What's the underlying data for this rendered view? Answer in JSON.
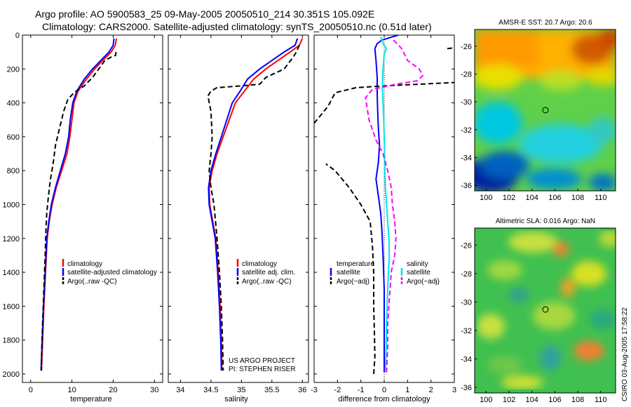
{
  "figure": {
    "title_line1": "Argo profile: AO 5900583_25 09-May-2005 20050510_214 30.351S 105.092E",
    "title_line2": "Climatology: CARS2000. Satellite-adjusted climatology: synTS_20050510.nc (0.51d later)",
    "credit": "CSIRO 03-Aug-2005 17:58:22",
    "project_line1": "US ARGO PROJECT",
    "project_line2": "PI: STEPHEN RISER"
  },
  "colors": {
    "climatology": "#ff0000",
    "satellite": "#0000ff",
    "argo": "#000000",
    "salinity_satellite": "#00e5ee",
    "salinity_argo": "#ff00ff"
  },
  "chart_data": [
    {
      "type": "line",
      "panel": "temperature",
      "xlabel": "temperature",
      "ylabel": "",
      "xlim": [
        -2,
        32
      ],
      "ylim": [
        2050,
        0
      ],
      "x_ticks": [
        "0",
        "10",
        "20",
        "30"
      ],
      "y_ticks": [
        "0",
        "200",
        "400",
        "600",
        "800",
        "1000",
        "1200",
        "1400",
        "1600",
        "1800",
        "2000"
      ],
      "legend": [
        "climatology",
        "satellite-adjusted climatology",
        "Argo(..raw -QC)"
      ],
      "series": [
        {
          "name": "climatology",
          "color": "#ff0000",
          "dash": "solid",
          "points": [
            [
              20.8,
              20
            ],
            [
              20.5,
              60
            ],
            [
              19.5,
              100
            ],
            [
              17.5,
              150
            ],
            [
              15.5,
              200
            ],
            [
              13.5,
              260
            ],
            [
              11.5,
              330
            ],
            [
              10.5,
              400
            ],
            [
              10.0,
              500
            ],
            [
              9.5,
              600
            ],
            [
              8.8,
              700
            ],
            [
              7.5,
              800
            ],
            [
              6.2,
              900
            ],
            [
              5.2,
              1000
            ],
            [
              4.5,
              1100
            ],
            [
              4.0,
              1200
            ],
            [
              3.6,
              1400
            ],
            [
              3.2,
              1600
            ],
            [
              2.9,
              1800
            ],
            [
              2.6,
              1980
            ]
          ]
        },
        {
          "name": "satellite-adjusted climatology",
          "color": "#0000ff",
          "dash": "solid",
          "points": [
            [
              20.2,
              20
            ],
            [
              20.0,
              60
            ],
            [
              19.0,
              100
            ],
            [
              17.0,
              150
            ],
            [
              15.0,
              200
            ],
            [
              13.0,
              260
            ],
            [
              11.2,
              330
            ],
            [
              10.2,
              400
            ],
            [
              9.6,
              500
            ],
            [
              9.2,
              600
            ],
            [
              8.4,
              700
            ],
            [
              7.2,
              800
            ],
            [
              6.0,
              900
            ],
            [
              5.0,
              1000
            ],
            [
              4.4,
              1100
            ],
            [
              3.9,
              1200
            ],
            [
              3.5,
              1400
            ],
            [
              3.1,
              1600
            ],
            [
              2.8,
              1800
            ],
            [
              2.5,
              1980
            ]
          ]
        },
        {
          "name": "Argo(..raw -QC)",
          "color": "#000000",
          "dash": "dashed",
          "points": [
            [
              20.7,
              100
            ],
            [
              20.6,
              120
            ],
            [
              19.5,
              130
            ],
            [
              18.0,
              150
            ],
            [
              16.5,
              200
            ],
            [
              15.0,
              250
            ],
            [
              13.0,
              300
            ],
            [
              10.5,
              340
            ],
            [
              9.0,
              380
            ],
            [
              8.0,
              450
            ],
            [
              7.0,
              550
            ],
            [
              6.0,
              650
            ],
            [
              5.5,
              750
            ],
            [
              4.8,
              850
            ],
            [
              4.3,
              950
            ],
            [
              3.9,
              1050
            ],
            [
              3.7,
              1150
            ],
            [
              3.5,
              1300
            ],
            [
              3.2,
              1500
            ],
            [
              2.9,
              1700
            ],
            [
              2.7,
              1850
            ],
            [
              2.6,
              1980
            ]
          ]
        }
      ]
    },
    {
      "type": "line",
      "panel": "salinity",
      "xlabel": "salinity",
      "ylabel": "",
      "xlim": [
        33.8,
        36.1
      ],
      "ylim": [
        2050,
        0
      ],
      "x_ticks": [
        "34",
        "34.5",
        "35",
        "35.5",
        "36"
      ],
      "legend": [
        "climatology",
        "satellite adj. clim.",
        "Argo(..raw -QC)"
      ],
      "series": [
        {
          "name": "climatology",
          "color": "#ff0000",
          "dash": "solid",
          "points": [
            [
              36.0,
              20
            ],
            [
              35.95,
              60
            ],
            [
              35.8,
              100
            ],
            [
              35.6,
              150
            ],
            [
              35.4,
              200
            ],
            [
              35.2,
              260
            ],
            [
              35.05,
              330
            ],
            [
              34.9,
              400
            ],
            [
              34.8,
              500
            ],
            [
              34.7,
              600
            ],
            [
              34.6,
              700
            ],
            [
              34.52,
              800
            ],
            [
              34.47,
              900
            ],
            [
              34.48,
              1000
            ],
            [
              34.53,
              1100
            ],
            [
              34.58,
              1200
            ],
            [
              34.62,
              1400
            ],
            [
              34.65,
              1600
            ],
            [
              34.67,
              1800
            ],
            [
              34.68,
              1980
            ]
          ]
        },
        {
          "name": "satellite adj. clim.",
          "color": "#0000ff",
          "dash": "solid",
          "points": [
            [
              35.92,
              20
            ],
            [
              35.88,
              60
            ],
            [
              35.7,
              100
            ],
            [
              35.5,
              150
            ],
            [
              35.3,
              200
            ],
            [
              35.1,
              260
            ],
            [
              34.98,
              330
            ],
            [
              34.85,
              400
            ],
            [
              34.76,
              500
            ],
            [
              34.67,
              600
            ],
            [
              34.58,
              700
            ],
            [
              34.5,
              800
            ],
            [
              34.46,
              900
            ],
            [
              34.47,
              1000
            ],
            [
              34.52,
              1100
            ],
            [
              34.57,
              1200
            ],
            [
              34.61,
              1400
            ],
            [
              34.64,
              1600
            ],
            [
              34.66,
              1800
            ],
            [
              34.67,
              1980
            ]
          ]
        },
        {
          "name": "Argo(..raw -QC)",
          "color": "#000000",
          "dash": "dashed",
          "points": [
            [
              35.95,
              60
            ],
            [
              35.9,
              100
            ],
            [
              35.85,
              130
            ],
            [
              35.7,
              200
            ],
            [
              35.4,
              250
            ],
            [
              35.3,
              290
            ],
            [
              35.0,
              300
            ],
            [
              34.6,
              310
            ],
            [
              34.5,
              330
            ],
            [
              34.45,
              360
            ],
            [
              34.5,
              450
            ],
            [
              34.52,
              600
            ],
            [
              34.5,
              700
            ],
            [
              34.47,
              800
            ],
            [
              34.5,
              900
            ],
            [
              34.55,
              1000
            ],
            [
              34.6,
              1200
            ],
            [
              34.64,
              1400
            ],
            [
              34.67,
              1600
            ],
            [
              34.69,
              1800
            ],
            [
              34.7,
              1980
            ]
          ]
        }
      ]
    },
    {
      "type": "line",
      "panel": "difference",
      "xlabel": "difference from climatology",
      "ylabel": "",
      "xlim": [
        -3,
        3
      ],
      "ylim": [
        2050,
        0
      ],
      "x_ticks": [
        "-3",
        "-2",
        "-1",
        "0",
        "1",
        "2",
        "3"
      ],
      "legend": [
        "temperature",
        "satellite",
        "Argo(−adj)",
        "salinity",
        "satellite",
        "Argo(−adj)"
      ],
      "series": [
        {
          "name": "satellite",
          "color": "#0000ff",
          "dash": "solid",
          "points": [
            [
              0.6,
              0
            ],
            [
              0.25,
              15
            ],
            [
              -0.1,
              30
            ],
            [
              -0.3,
              50
            ],
            [
              -0.4,
              80
            ],
            [
              -0.35,
              150
            ],
            [
              -0.3,
              250
            ],
            [
              -0.3,
              350
            ],
            [
              -0.28,
              450
            ],
            [
              -0.25,
              550
            ],
            [
              -0.2,
              650
            ],
            [
              -0.25,
              750
            ],
            [
              -0.35,
              850
            ],
            [
              -0.25,
              950
            ],
            [
              -0.15,
              1050
            ],
            [
              -0.1,
              1150
            ],
            [
              -0.05,
              1300
            ],
            [
              0,
              1500
            ],
            [
              0,
              1800
            ],
            [
              0,
              1990
            ]
          ]
        },
        {
          "name": "Argo(−adj)",
          "color": "#000000",
          "dash": "dashed",
          "points": [
            [
              -0.45,
              2000
            ],
            [
              -0.4,
              1900
            ],
            [
              -0.42,
              1750
            ],
            [
              -0.45,
              1600
            ],
            [
              -0.45,
              1400
            ],
            [
              -0.5,
              1250
            ],
            [
              -0.6,
              1100
            ],
            [
              -1.0,
              1000
            ],
            [
              -1.5,
              900
            ],
            [
              -2.1,
              800
            ],
            [
              -2.5,
              760
            ]
          ]
        },
        {
          "name": "Argo(−adj)",
          "color": "#000000",
          "dash": "dashed",
          "points": [
            [
              -3.0,
              520
            ],
            [
              -2.4,
              420
            ],
            [
              -2.1,
              340
            ],
            [
              -1.2,
              310
            ],
            [
              0,
              300
            ],
            [
              3.0,
              280
            ]
          ]
        },
        {
          "name": "Argo(−adj)",
          "color": "#000000",
          "dash": "dashed",
          "points": [
            [
              2.7,
              80
            ],
            [
              3.0,
              75
            ]
          ]
        },
        {
          "name": "satellite",
          "color": "#00e5ee",
          "dash": "solid",
          "points": [
            [
              -0.15,
              10
            ],
            [
              -0.05,
              50
            ],
            [
              0.1,
              80
            ],
            [
              0.0,
              110
            ],
            [
              -0.05,
              200
            ],
            [
              -0.08,
              300
            ],
            [
              -0.05,
              400
            ],
            [
              -0.02,
              500
            ],
            [
              0.0,
              600
            ],
            [
              0.03,
              800
            ],
            [
              0.05,
              900
            ],
            [
              0.1,
              1000
            ],
            [
              0.15,
              1100
            ],
            [
              0.2,
              1200
            ],
            [
              0.22,
              1300
            ],
            [
              0.18,
              1400
            ],
            [
              0.15,
              1500
            ],
            [
              0.1,
              1700
            ],
            [
              0.08,
              1850
            ],
            [
              0.05,
              1990
            ]
          ]
        },
        {
          "name": "Argo(−adj)",
          "color": "#ff00ff",
          "dash": "dashed",
          "points": [
            [
              0.4,
              30
            ],
            [
              0.75,
              80
            ],
            [
              1.0,
              150
            ],
            [
              1.5,
              200
            ],
            [
              1.65,
              240
            ],
            [
              1.4,
              270
            ],
            [
              0.5,
              290
            ],
            [
              -0.5,
              320
            ],
            [
              -0.8,
              370
            ],
            [
              -0.65,
              500
            ],
            [
              -0.35,
              620
            ],
            [
              -0.05,
              700
            ],
            [
              0.15,
              800
            ],
            [
              0.3,
              900
            ],
            [
              0.35,
              1000
            ],
            [
              0.45,
              1100
            ],
            [
              0.5,
              1200
            ],
            [
              0.45,
              1300
            ],
            [
              0.3,
              1400
            ],
            [
              0.25,
              1500
            ],
            [
              0.15,
              1700
            ],
            [
              0.15,
              1850
            ],
            [
              0.1,
              1990
            ]
          ]
        }
      ]
    }
  ],
  "maps": [
    {
      "title": "AMSR-E SST: 20.7 Argo: 20.6",
      "x_ticks": [
        "100",
        "102",
        "104",
        "106",
        "108",
        "110"
      ],
      "y_ticks": [
        "-26",
        "-28",
        "-30",
        "-32",
        "-34",
        "-36"
      ],
      "marker_lon": 105.092,
      "marker_lat": -30.351
    },
    {
      "title": "Altimetric SLA: 0.016 Argo: NaN",
      "x_ticks": [
        "100",
        "102",
        "104",
        "106",
        "108",
        "110"
      ],
      "y_ticks": [
        "-26",
        "-28",
        "-30",
        "-32",
        "-34",
        "-36"
      ],
      "marker_lon": 105.092,
      "marker_lat": -30.351
    }
  ]
}
